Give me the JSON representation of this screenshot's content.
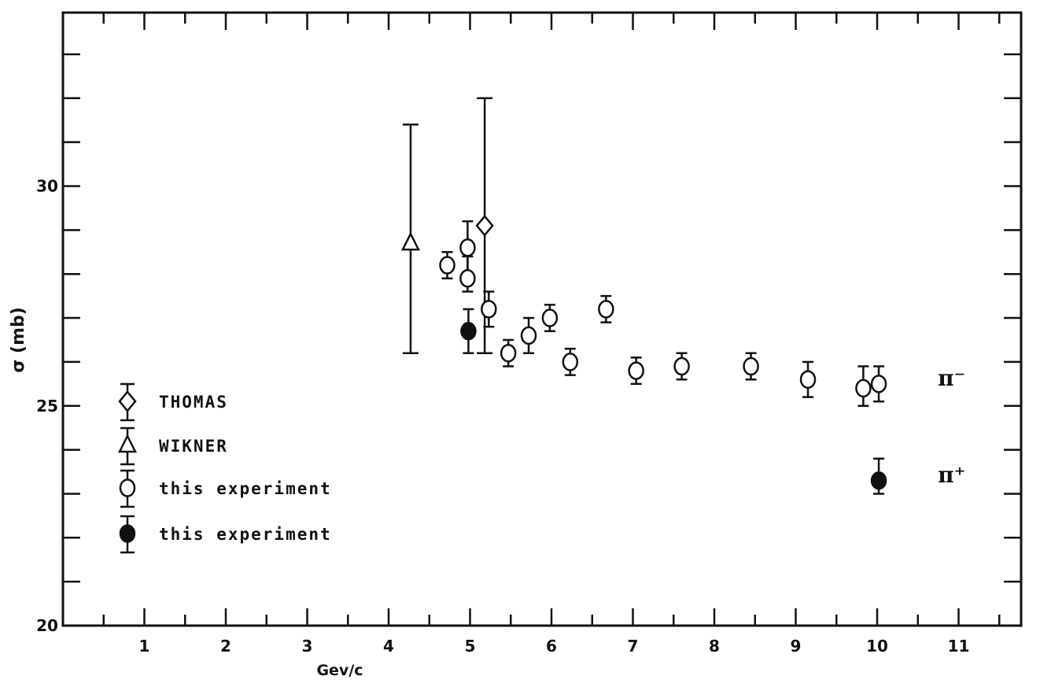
{
  "chart_data": {
    "type": "scatter",
    "xlabel": "Gev/c",
    "ylabel": "σ (mb)",
    "xlim": [
      0,
      11.8
    ],
    "ylim": [
      20,
      33.8
    ],
    "x_ticks": [
      1,
      2,
      3,
      4,
      5,
      6,
      7,
      8,
      9,
      10,
      11
    ],
    "y_tick_labels": [
      {
        "value": 20,
        "label": "20"
      },
      {
        "value": 25,
        "label": "25"
      },
      {
        "value": 30,
        "label": "30"
      }
    ],
    "y_minor_step": 1,
    "x_minor_step": 0.5,
    "series": [
      {
        "name": "THOMAS",
        "marker": "diamond",
        "filled": false,
        "points": [
          {
            "x": 5.18,
            "y": 29.1,
            "ylo": 26.2,
            "yhi": 32.0
          }
        ]
      },
      {
        "name": "WIKNER",
        "marker": "triangle",
        "filled": false,
        "points": [
          {
            "x": 4.27,
            "y": 28.7,
            "ylo": 26.2,
            "yhi": 31.4
          }
        ]
      },
      {
        "name": "this experiment",
        "marker": "circle",
        "filled": false,
        "points": [
          {
            "x": 4.72,
            "y": 28.2,
            "ylo": 27.9,
            "yhi": 28.5
          },
          {
            "x": 4.97,
            "y": 28.6,
            "ylo": 28.0,
            "yhi": 29.2
          },
          {
            "x": 4.97,
            "y": 27.9,
            "ylo": 27.6,
            "yhi": 28.4
          },
          {
            "x": 5.23,
            "y": 27.2,
            "ylo": 26.8,
            "yhi": 27.6
          },
          {
            "x": 5.47,
            "y": 26.2,
            "ylo": 25.9,
            "yhi": 26.5
          },
          {
            "x": 5.72,
            "y": 26.6,
            "ylo": 26.2,
            "yhi": 27.0
          },
          {
            "x": 5.98,
            "y": 27.0,
            "ylo": 26.7,
            "yhi": 27.3
          },
          {
            "x": 6.23,
            "y": 26.0,
            "ylo": 25.7,
            "yhi": 26.3
          },
          {
            "x": 6.67,
            "y": 27.2,
            "ylo": 26.9,
            "yhi": 27.5
          },
          {
            "x": 7.04,
            "y": 25.8,
            "ylo": 25.5,
            "yhi": 26.1
          },
          {
            "x": 7.6,
            "y": 25.9,
            "ylo": 25.6,
            "yhi": 26.2
          },
          {
            "x": 8.45,
            "y": 25.9,
            "ylo": 25.6,
            "yhi": 26.2
          },
          {
            "x": 9.15,
            "y": 25.6,
            "ylo": 25.2,
            "yhi": 26.0
          },
          {
            "x": 9.83,
            "y": 25.4,
            "ylo": 25.0,
            "yhi": 25.9
          },
          {
            "x": 10.02,
            "y": 25.5,
            "ylo": 25.1,
            "yhi": 25.9
          }
        ]
      },
      {
        "name": "this experiment",
        "marker": "circle",
        "filled": true,
        "points": [
          {
            "x": 4.98,
            "y": 26.7,
            "ylo": 26.2,
            "yhi": 27.2
          },
          {
            "x": 10.02,
            "y": 23.3,
            "ylo": 23.0,
            "yhi": 23.8
          }
        ]
      }
    ],
    "annotations": [
      {
        "text": "π⁻",
        "x": 10.6,
        "y": 25.6
      },
      {
        "text": "π⁺",
        "x": 10.6,
        "y": 23.4
      }
    ],
    "legend": {
      "position": "left-middle"
    },
    "grid": false
  }
}
